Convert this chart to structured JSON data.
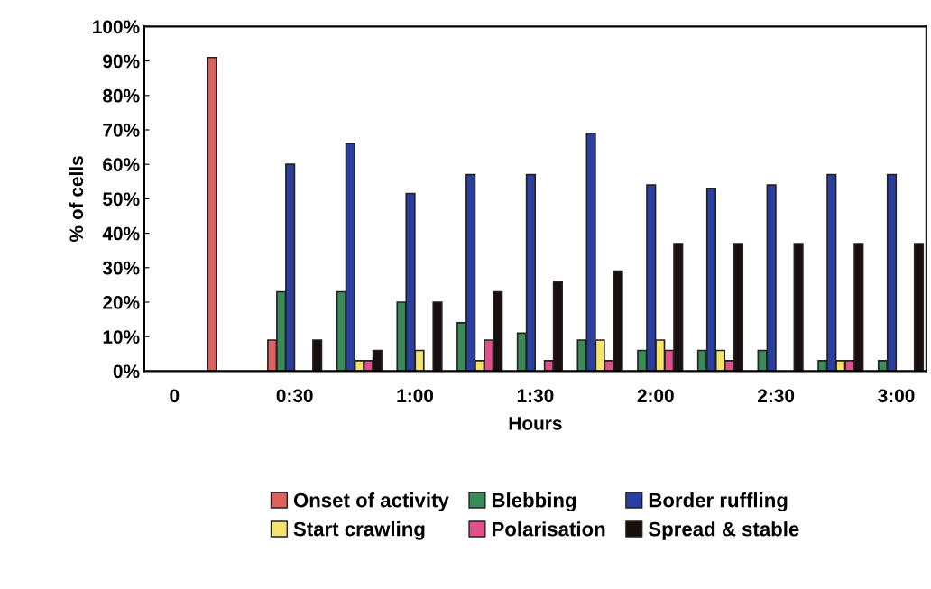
{
  "chart_data": {
    "type": "bar",
    "xlabel": "Hours",
    "ylabel": "% of cells",
    "categories": [
      "0",
      null,
      "0:30",
      null,
      "1:00",
      null,
      "1:30",
      null,
      "2:00",
      null,
      "2:30",
      null,
      "3:00"
    ],
    "series": [
      {
        "name": "Onset of activity",
        "color": "#e06060",
        "values": [
          0,
          91,
          9,
          0,
          0,
          0,
          0,
          0,
          0,
          0,
          0,
          0,
          0
        ]
      },
      {
        "name": "Blebbing",
        "color": "#3a8a5a",
        "values": [
          0,
          0,
          23,
          23,
          20,
          14,
          11,
          9,
          6,
          6,
          6,
          3,
          3
        ]
      },
      {
        "name": "Border ruffling",
        "color": "#2a3fa0",
        "values": [
          0,
          0,
          60,
          66,
          51.5,
          57,
          57,
          69,
          54,
          53,
          54,
          57,
          57
        ]
      },
      {
        "name": "Start crawling",
        "color": "#f5e36a",
        "values": [
          0,
          0,
          0,
          3,
          6,
          3,
          0,
          9,
          9,
          6,
          0,
          3,
          0
        ]
      },
      {
        "name": "Polarisation",
        "color": "#e0508a",
        "values": [
          0,
          0,
          0,
          3,
          0,
          9,
          3,
          3,
          6,
          3,
          0,
          3,
          0
        ]
      },
      {
        "name": "Spread & stable",
        "color": "#1a0f0f",
        "values": [
          0,
          0,
          9,
          6,
          20,
          23,
          26,
          29,
          37,
          37,
          37,
          37,
          37
        ]
      }
    ],
    "ylim": [
      0,
      100
    ],
    "yticks": [
      {
        "value": 0,
        "label": "0%"
      },
      {
        "value": 10,
        "label": "10%"
      },
      {
        "value": 20,
        "label": "20%"
      },
      {
        "value": 30,
        "label": "30%"
      },
      {
        "value": 40,
        "label": "40%"
      },
      {
        "value": 50,
        "label": "50%"
      },
      {
        "value": 60,
        "label": "60%"
      },
      {
        "value": 70,
        "label": "70%"
      },
      {
        "value": 80,
        "label": "80%"
      },
      {
        "value": 90,
        "label": "90%"
      },
      {
        "value": 100,
        "label": "100%"
      }
    ],
    "grid": false,
    "legend": "bottom"
  }
}
